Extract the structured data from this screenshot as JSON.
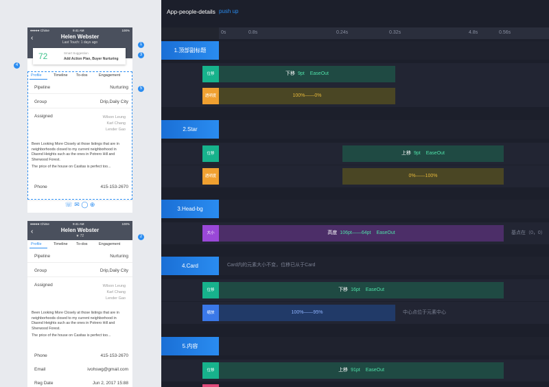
{
  "header": {
    "title": "App-people-details",
    "subtitle": "push up"
  },
  "timeline": {
    "ticks": [
      "0s",
      "0.8s",
      "0.24s",
      "0.32s",
      "4.8s",
      "0.56s"
    ]
  },
  "sections": [
    {
      "title": "1.顶部副标题",
      "rows": [
        {
          "label": "位移",
          "action": "下移",
          "amount": "9pt",
          "easing": "EaseOut"
        },
        {
          "label": "透明度",
          "text": "100%——0%"
        }
      ]
    },
    {
      "title": "2.Star",
      "rows": [
        {
          "label": "位移",
          "action": "上移",
          "amount": "9pt",
          "easing": "EaseOut"
        },
        {
          "label": "透明度",
          "text": "0%——100%"
        }
      ]
    },
    {
      "title": "3.Head-bg",
      "rows": [
        {
          "label": "大小",
          "action": "高度",
          "amount": "106pt——64pt",
          "easing": "EaseOut",
          "note": "基点在（0，0）"
        }
      ]
    },
    {
      "title": "4.Card",
      "note": "Card内的元素大小不变，位移已从于Card",
      "rows": [
        {
          "label": "位移",
          "action": "下移",
          "amount": "16pt",
          "easing": "EaseOut"
        },
        {
          "label": "缩放",
          "text": "100%——95%",
          "note": "中心点位于元素中心"
        }
      ]
    },
    {
      "title": "5.内容",
      "rows": [
        {
          "label": "位移",
          "action": "上移",
          "amount": "91pt",
          "easing": "EaseOut"
        }
      ]
    }
  ],
  "phone1": {
    "carrier": "●●●●● Chime",
    "time": "9:41 AM",
    "battery": "100%",
    "name": "Helen Webster",
    "last_touch": "Last Touch: 1 days ago",
    "score": "72",
    "suggestion_title": "Smart Suggestion",
    "suggestion": "Add Action Plan, Buyer Nurturing",
    "tabs": [
      "Profile",
      "Timeline",
      "To-dos",
      "Engagement"
    ],
    "pipeline": [
      "Pipeline",
      "Nurturing"
    ],
    "group": [
      "Group",
      "Drip,Daily City"
    ],
    "assigned": [
      "Assigned",
      "Wilson Leung",
      "Karl Chang",
      "Lender Gao"
    ],
    "notes": [
      "Been Looking More Closely at those listings that are in neighborhoods closed to my current neighborhood in Diaond Heights such as the ones in Potrero Hill and Sherwood Forest.",
      "The price of the house on Casitas is perfect too..."
    ],
    "phone": [
      "Phone",
      "415-153-2670"
    ],
    "callouts": [
      "1",
      "3",
      "4",
      "5"
    ]
  },
  "phone2": {
    "carrier": "●●●●● Chime",
    "time": "9:41 AM",
    "battery": "100%",
    "name": "Helen Webster",
    "score": "★ 72",
    "tabs": [
      "Profile",
      "Timeline",
      "To-dos",
      "Engagement"
    ],
    "pipeline": [
      "Pipeline",
      "Nurturing"
    ],
    "group": [
      "Group",
      "Drip,Daily City"
    ],
    "assigned": [
      "Assigned",
      "Wilson Leung",
      "Karl Chang",
      "Lender Gao"
    ],
    "notes": [
      "Been Looking More Closely at those listings that are in neighborhoods closed to my current neighborhood in Diaond Heights such as the ones in Potrero Hill and Sherwood Forest.",
      "The price of the house on Casitas is perfect too..."
    ],
    "phone": [
      "Phone",
      "415-153-2670"
    ],
    "email": [
      "Email",
      "ivohswg@gmail.com"
    ],
    "reg": [
      "Reg Date",
      "Jun 2, 2017 15:88"
    ],
    "callout": "2"
  }
}
